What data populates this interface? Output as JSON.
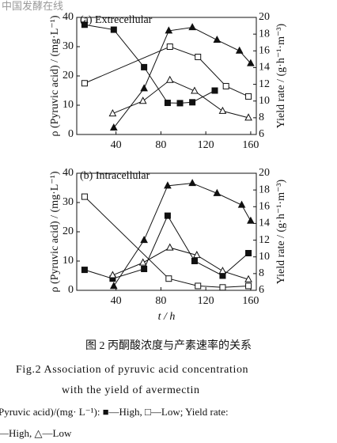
{
  "watermark": "中国发酵在线",
  "chart_data": [
    {
      "type": "line",
      "title": "(a) Extrecellular",
      "ylabel": "ρ (Pyruvic acid) / (mg·L⁻¹)",
      "y2label": "Yield rate / (g·h⁻¹·m⁻³)",
      "xlim": [
        5,
        165
      ],
      "xticks": [
        40,
        80,
        120,
        160
      ],
      "ylim": [
        0,
        40
      ],
      "yticks": [
        0,
        10,
        20,
        30,
        40
      ],
      "y2lim": [
        6,
        20
      ],
      "y2ticks": [
        6,
        8,
        10,
        12,
        14,
        16,
        18,
        20
      ],
      "series": [
        {
          "name": "High",
          "marker": "square-filled",
          "color": "#111",
          "x": [
            12,
            38,
            65,
            86,
            97,
            108,
            128
          ],
          "values": [
            37.5,
            35.8,
            23,
            10.8,
            10.7,
            11,
            15
          ]
        },
        {
          "name": "Low",
          "marker": "square-open",
          "color": "#111",
          "x": [
            12,
            88,
            113,
            138,
            158
          ],
          "values": [
            17.5,
            30,
            26.5,
            16.5,
            13
          ]
        },
        {
          "name": "High",
          "axis": "y2",
          "marker": "triangle-filled",
          "color": "#111",
          "x": [
            38,
            65,
            87,
            108,
            130,
            150,
            160
          ],
          "values": [
            6.8,
            11.5,
            18.4,
            18.8,
            17.3,
            16,
            14.5
          ]
        },
        {
          "name": "Low",
          "axis": "y2",
          "marker": "triangle-open",
          "color": "#111",
          "x": [
            37,
            64,
            88,
            110,
            135,
            158
          ],
          "values": [
            8.5,
            10,
            12.5,
            11.2,
            8.8,
            8
          ]
        }
      ]
    },
    {
      "type": "line",
      "title": "(b) Intracellular",
      "ylabel": "ρ (Pyruvic acid) / (mg·L⁻¹)",
      "y2label": "Yield rate / (g·h⁻¹·m⁻³)",
      "xlabel": "t / h",
      "xlim": [
        5,
        165
      ],
      "xticks": [
        40,
        80,
        120,
        160
      ],
      "ylim": [
        0,
        40
      ],
      "yticks": [
        0,
        10,
        20,
        30,
        40
      ],
      "y2lim": [
        6,
        20
      ],
      "y2ticks": [
        6,
        8,
        10,
        12,
        14,
        16,
        18,
        20
      ],
      "series": [
        {
          "name": "High",
          "marker": "square-filled",
          "color": "#111",
          "x": [
            12,
            37,
            65,
            86,
            110,
            135,
            158
          ],
          "values": [
            7,
            4,
            7.3,
            25.5,
            10,
            5,
            12.7
          ]
        },
        {
          "name": "Low",
          "marker": "square-open",
          "color": "#111",
          "x": [
            12,
            87,
            113,
            135,
            158
          ],
          "values": [
            32,
            4,
            1.5,
            1,
            1.5
          ]
        },
        {
          "name": "High",
          "axis": "y2",
          "marker": "triangle-filled",
          "color": "#111",
          "x": [
            38,
            65,
            86,
            108,
            130,
            152,
            160
          ],
          "values": [
            6.5,
            12,
            18.5,
            18.8,
            17.6,
            16.2,
            14.3
          ]
        },
        {
          "name": "Low",
          "axis": "y2",
          "marker": "triangle-open",
          "color": "#111",
          "x": [
            37,
            64,
            88,
            112,
            135,
            158
          ],
          "values": [
            7.8,
            9.3,
            11.1,
            10.2,
            8.3,
            7.3
          ]
        }
      ]
    }
  ],
  "caption": {
    "cn": "图 2  丙酮酸浓度与产素速率的关系",
    "en_line1": "Fig.2   Association of pyruvic acid concentration",
    "en_line2": "with the yield of avermectin",
    "legend_line1": "Pyruvic acid)/(mg· L⁻¹): ■—High, □—Low;  Yield rate:",
    "legend_line2": "—High, △—Low"
  }
}
